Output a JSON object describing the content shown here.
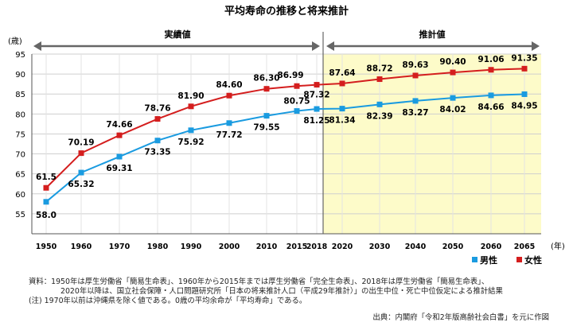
{
  "chart_data": {
    "type": "line",
    "title": "平均寿命の推移と将来推計",
    "ylabel": "(歳)",
    "xlabel": "(年)",
    "ylim": [
      50,
      95
    ],
    "yticks": [
      55,
      60,
      65,
      70,
      75,
      80,
      85,
      90,
      95
    ],
    "x": [
      "1950",
      "1960",
      "1970",
      "1980",
      "1990",
      "2000",
      "2010",
      "2015",
      "2018",
      "2020",
      "2030",
      "2040",
      "2050",
      "2060",
      "2065"
    ],
    "periods": [
      {
        "label": "実績値",
        "from": "1950",
        "to": "2018"
      },
      {
        "label": "推計値",
        "from": "2018",
        "to": "2065"
      }
    ],
    "grid": true,
    "legend_position": "bottom-right",
    "series": [
      {
        "name": "男性",
        "color": "#1a9be0",
        "values": [
          58.0,
          65.32,
          69.31,
          73.35,
          75.92,
          77.72,
          79.55,
          80.75,
          81.25,
          81.34,
          82.39,
          83.27,
          84.02,
          84.66,
          84.95
        ],
        "labels": [
          "58.0",
          "65.32",
          "69.31",
          "73.35",
          "75.92",
          "77.72",
          "79.55",
          "80.75",
          "81.25",
          "81.34",
          "82.39",
          "83.27",
          "84.02",
          "84.66",
          "84.95"
        ]
      },
      {
        "name": "女性",
        "color": "#d41e1e",
        "values": [
          61.5,
          70.19,
          74.66,
          78.76,
          81.9,
          84.6,
          86.3,
          86.99,
          87.32,
          87.64,
          88.72,
          89.63,
          90.4,
          91.06,
          91.35
        ],
        "labels": [
          "61.5",
          "70.19",
          "74.66",
          "78.76",
          "81.90",
          "84.60",
          "86.30",
          "86.99",
          "87.32",
          "87.64",
          "88.72",
          "89.63",
          "90.40",
          "91.06",
          "91.35"
        ]
      }
    ]
  },
  "colors": {
    "forecast_bg": "#fdfbc9",
    "grid": "#cfcfcf",
    "axis": "#555555",
    "arrow": "#666666"
  },
  "notes": [
    "資料：1950年は厚生労働省「簡易生命表」、1960年から2015年までは厚生労働省「完全生命表」、2018年は厚生労働省「簡易生命表」、",
    "2020年以降は、国立社会保障・人口問題研究所「日本の将来推計人口（平成29年推計）」の出生中位・死亡中位仮定による推計結果",
    "(注) 1970年以前は沖縄県を除く値である。0歳の平均余命が「平均寿命」である。"
  ],
  "source": "出典：内閣府「令和2年版高齢社会白書」を元に作図"
}
